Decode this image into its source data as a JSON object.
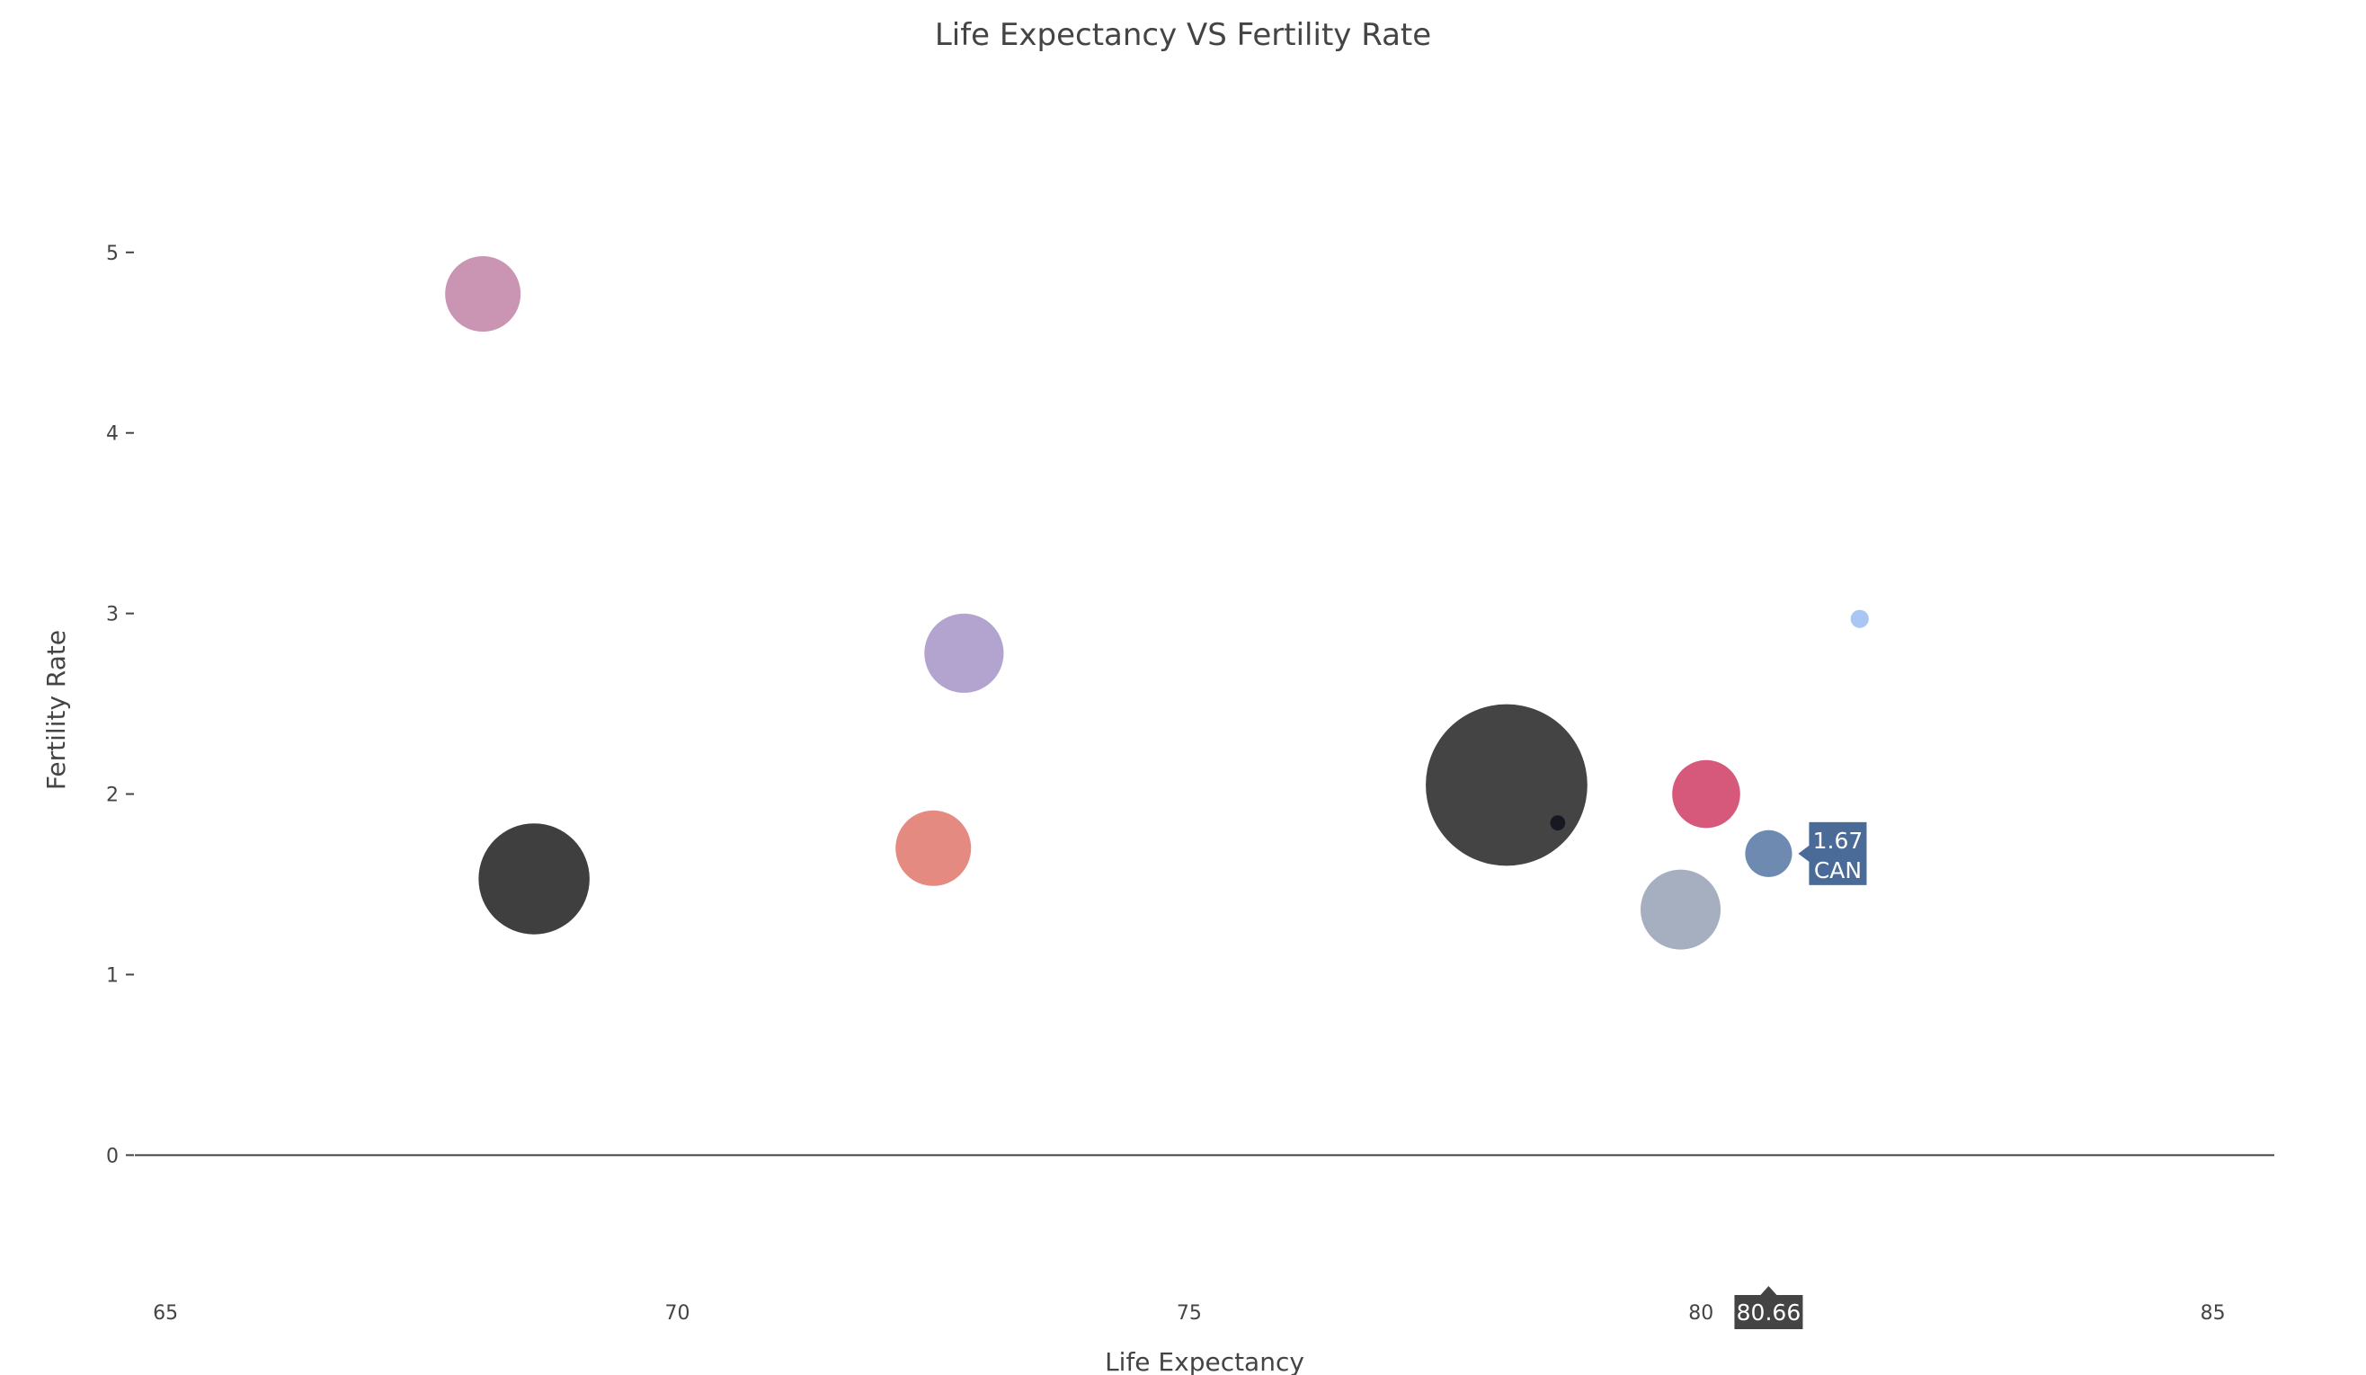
{
  "chart_data": {
    "type": "scatter",
    "title": "Life Expectancy VS Fertility Rate",
    "xlabel": "Life Expectancy",
    "ylabel": "Fertility Rate",
    "xlim": [
      64.7,
      85.6
    ],
    "ylim": [
      -0.72,
      5.9
    ],
    "xticks": [
      65,
      70,
      75,
      80,
      85
    ],
    "yticks": [
      0,
      1,
      2,
      3,
      4,
      5
    ],
    "grid": false,
    "points": [
      {
        "x": 68.1,
        "y": 4.77,
        "size": 1.0,
        "color": "#c995b2"
      },
      {
        "x": 68.6,
        "y": 1.53,
        "size": 1.47,
        "color": "#3f3f3f"
      },
      {
        "x": 72.5,
        "y": 1.7,
        "size": 1.0,
        "color": "#e58a80"
      },
      {
        "x": 72.8,
        "y": 2.78,
        "size": 1.05,
        "color": "#b3a4cf"
      },
      {
        "x": 78.1,
        "y": 2.05,
        "size": 2.14,
        "color": "#444444"
      },
      {
        "x": 78.6,
        "y": 1.84,
        "size": 0.2,
        "color": "#181822"
      },
      {
        "x": 79.8,
        "y": 1.36,
        "size": 1.06,
        "color": "#a6afc0"
      },
      {
        "x": 80.05,
        "y": 2.0,
        "size": 0.9,
        "color": "#d6587a"
      },
      {
        "x": 80.66,
        "y": 1.67,
        "size": 0.62,
        "color": "#6f8ab0"
      },
      {
        "x": 81.55,
        "y": 2.97,
        "size": 0.24,
        "color": "#a9c6f4"
      }
    ],
    "hover": {
      "x_value": "80.66",
      "y_value": "1.67",
      "label": "CAN",
      "color": "#4a6a97"
    }
  }
}
